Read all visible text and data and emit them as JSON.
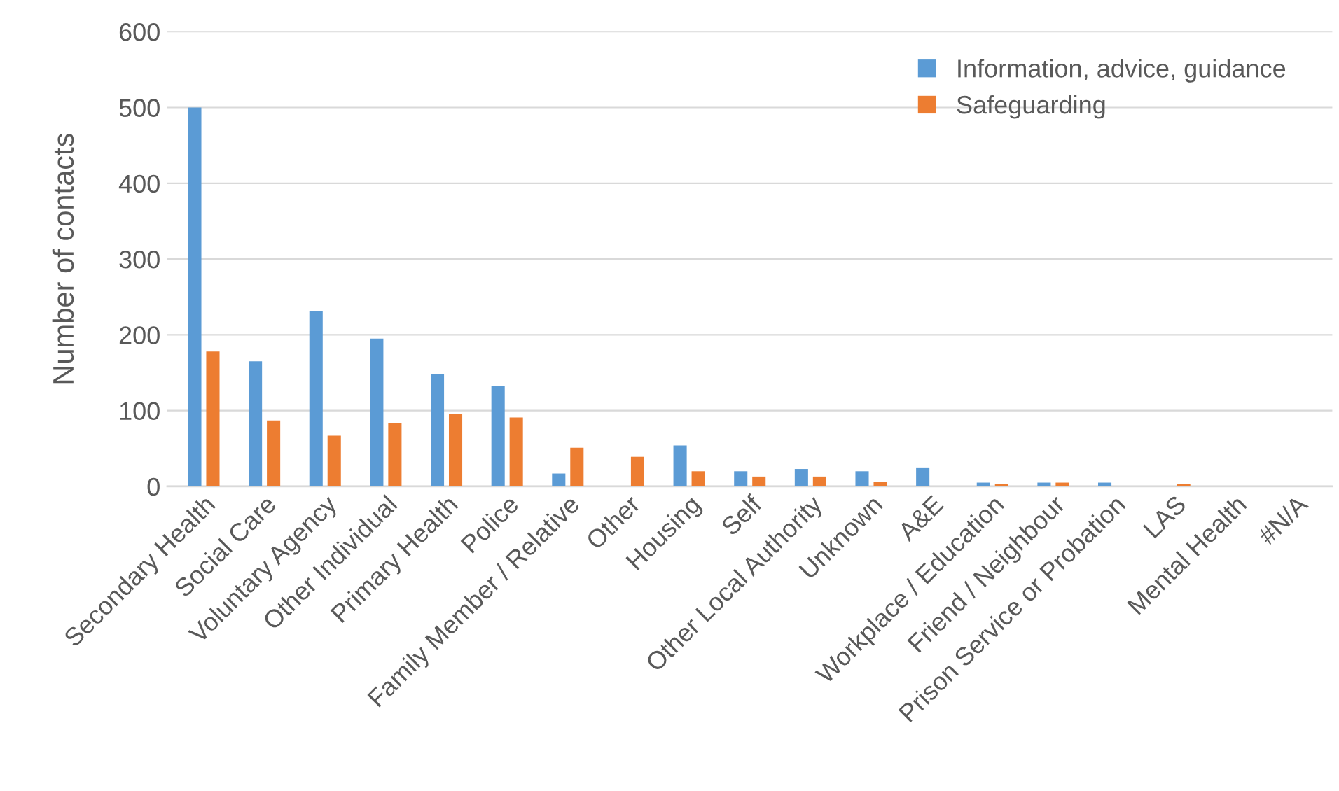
{
  "chart_data": {
    "type": "bar",
    "ylabel": "Number of contacts",
    "categories": [
      "Secondary Health",
      "Social Care",
      "Voluntary Agency",
      "Other Individual",
      "Primary Health",
      "Police",
      "Family Member / Relative",
      "Other",
      "Housing",
      "Self",
      "Other Local Authority",
      "Unknown",
      "A&E",
      "Workplace / Education",
      "Friend / Neighbour",
      "Prison Service or Probation",
      "LAS",
      "Mental Health",
      "#N/A"
    ],
    "series": [
      {
        "name": "Information, advice, guidance",
        "color": "#5b9bd5",
        "values": [
          500,
          165,
          231,
          195,
          148,
          133,
          17,
          0,
          54,
          20,
          23,
          20,
          25,
          5,
          5,
          5,
          0,
          0,
          0
        ]
      },
      {
        "name": "Safeguarding",
        "color": "#ed7d31",
        "values": [
          178,
          87,
          67,
          84,
          96,
          91,
          51,
          39,
          20,
          13,
          13,
          6,
          0,
          3,
          5,
          0,
          3,
          0,
          0
        ]
      }
    ],
    "ylim": [
      0,
      600
    ],
    "yticks": [
      0,
      100,
      200,
      300,
      400,
      500,
      600
    ],
    "grid": "y",
    "legend": "top right"
  }
}
